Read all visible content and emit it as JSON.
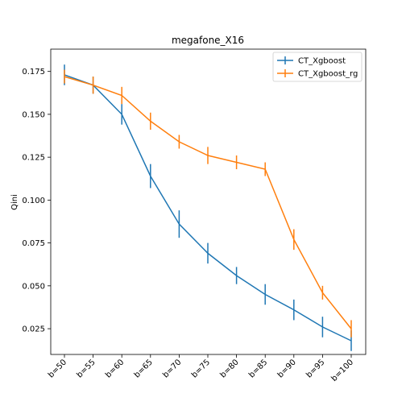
{
  "chart_data": {
    "type": "line",
    "title": "megafone_X16",
    "xlabel": "",
    "ylabel": "Qini",
    "categories": [
      "b=50",
      "b=55",
      "b=60",
      "b=65",
      "b=70",
      "b=75",
      "b=80",
      "b=85",
      "b=90",
      "b=95",
      "b=100"
    ],
    "ylim": [
      0.01,
      0.188
    ],
    "yticks": [
      "0.025",
      "0.050",
      "0.075",
      "0.100",
      "0.125",
      "0.150",
      "0.175"
    ],
    "grid": false,
    "legend_position": "top-right",
    "series": [
      {
        "name": "CT_Xgboost",
        "color": "#1f77b4",
        "values": [
          0.173,
          0.167,
          0.15,
          0.114,
          0.086,
          0.069,
          0.056,
          0.045,
          0.036,
          0.026,
          0.018
        ],
        "errors": [
          0.006,
          0.005,
          0.006,
          0.007,
          0.008,
          0.006,
          0.005,
          0.006,
          0.006,
          0.006,
          0.006
        ]
      },
      {
        "name": "CT_Xgboost_rg",
        "color": "#ff7f0e",
        "values": [
          0.172,
          0.167,
          0.161,
          0.146,
          0.134,
          0.126,
          0.122,
          0.118,
          0.077,
          0.046,
          0.025
        ],
        "errors": [
          0.004,
          0.005,
          0.005,
          0.005,
          0.004,
          0.005,
          0.004,
          0.004,
          0.006,
          0.004,
          0.005
        ]
      }
    ]
  }
}
